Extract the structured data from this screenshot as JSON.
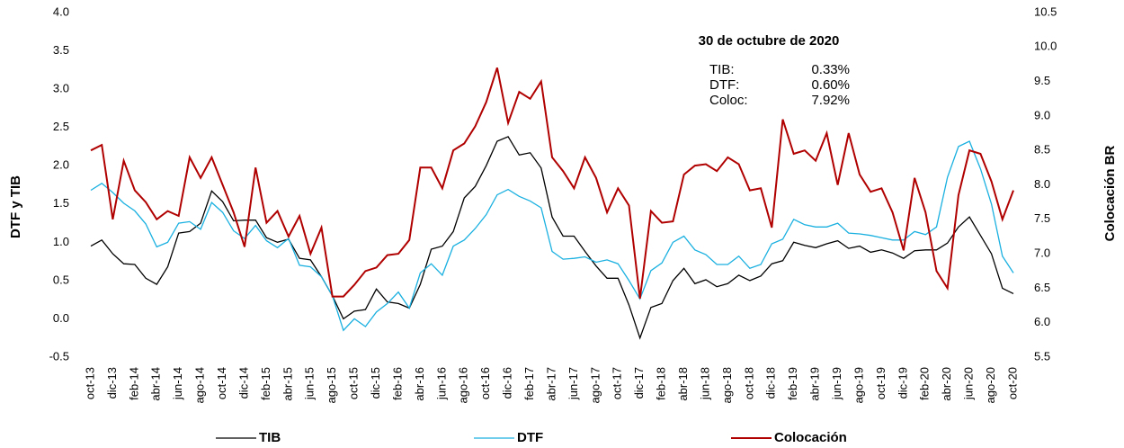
{
  "chart_data": {
    "type": "line",
    "y_label": "DTF y TIB",
    "y2_label": "Colocación BR",
    "annotation": {
      "title": "30 de octubre de 2020",
      "rows": [
        [
          "TIB:",
          "0.33%"
        ],
        [
          "DTF:",
          "0.60%"
        ],
        [
          "Coloc:",
          "7.92%"
        ]
      ]
    },
    "categories": [
      "oct-13",
      null,
      "dic-13",
      null,
      "feb-14",
      null,
      "abr-14",
      null,
      "jun-14",
      null,
      "ago-14",
      null,
      "oct-14",
      null,
      "dic-14",
      null,
      "feb-15",
      null,
      "abr-15",
      null,
      "jun-15",
      null,
      "ago-15",
      null,
      "oct-15",
      null,
      "dic-15",
      null,
      "feb-16",
      null,
      "abr-16",
      null,
      "jun-16",
      null,
      "ago-16",
      null,
      "oct-16",
      null,
      "dic-16",
      null,
      "feb-17",
      null,
      "abr-17",
      null,
      "jun-17",
      null,
      "ago-17",
      null,
      "oct-17",
      null,
      "dic-17",
      null,
      "feb-18",
      null,
      "abr-18",
      null,
      "jun-18",
      null,
      "ago-18",
      null,
      "oct-18",
      null,
      "dic-18",
      null,
      "feb-19",
      null,
      "abr-19",
      null,
      "jun-19",
      null,
      "ago-19",
      null,
      "oct-19",
      null,
      "dic-19",
      null,
      "feb-20",
      null,
      "abr-20",
      null,
      "jun-20",
      null,
      "ago-20",
      null,
      "oct-20"
    ],
    "series": [
      {
        "name": "TIB",
        "color": "#000000",
        "values": [
          0.95,
          1.03,
          0.85,
          0.72,
          0.71,
          0.53,
          0.45,
          0.68,
          1.12,
          1.14,
          1.25,
          1.67,
          1.53,
          1.28,
          1.29,
          1.29,
          1.06,
          1.0,
          1.04,
          0.79,
          0.77,
          0.55,
          0.3,
          0.0,
          0.1,
          0.12,
          0.39,
          0.22,
          0.2,
          0.14,
          0.45,
          0.91,
          0.95,
          1.14,
          1.58,
          1.73,
          2.0,
          2.32,
          2.38,
          2.14,
          2.17,
          1.97,
          1.33,
          1.08,
          1.08,
          0.88,
          0.69,
          0.53,
          0.53,
          0.18,
          -0.25,
          0.15,
          0.2,
          0.5,
          0.66,
          0.46,
          0.51,
          0.42,
          0.46,
          0.57,
          0.5,
          0.56,
          0.72,
          0.76,
          1.0,
          0.96,
          0.93,
          0.98,
          1.02,
          0.92,
          0.95,
          0.87,
          0.9,
          0.86,
          0.79,
          0.89,
          0.9,
          0.9,
          0.99,
          1.2,
          1.33,
          1.09,
          0.85,
          0.4,
          0.33
        ]
      },
      {
        "name": "DTF",
        "color": "#1ab0e0",
        "values": [
          1.68,
          1.77,
          1.65,
          1.51,
          1.41,
          1.24,
          0.94,
          1.0,
          1.25,
          1.27,
          1.17,
          1.52,
          1.39,
          1.15,
          1.05,
          1.22,
          1.02,
          0.93,
          1.05,
          0.7,
          0.68,
          0.55,
          0.3,
          -0.15,
          0.0,
          -0.1,
          0.09,
          0.2,
          0.35,
          0.14,
          0.6,
          0.72,
          0.57,
          0.95,
          1.03,
          1.18,
          1.36,
          1.62,
          1.69,
          1.6,
          1.54,
          1.45,
          0.88,
          0.78,
          0.79,
          0.81,
          0.74,
          0.77,
          0.72,
          0.5,
          0.26,
          0.63,
          0.73,
          1.0,
          1.08,
          0.9,
          0.84,
          0.71,
          0.71,
          0.82,
          0.66,
          0.71,
          0.98,
          1.04,
          1.3,
          1.23,
          1.2,
          1.2,
          1.25,
          1.12,
          1.11,
          1.09,
          1.06,
          1.03,
          1.03,
          1.14,
          1.1,
          1.2,
          1.85,
          2.25,
          2.32,
          1.96,
          1.5,
          0.82,
          0.6
        ]
      },
      {
        "name": "Colocación",
        "color": "#b00000",
        "axis": "y2",
        "values": [
          8.5,
          8.58,
          7.5,
          8.35,
          7.92,
          7.75,
          7.5,
          7.62,
          7.55,
          8.4,
          8.1,
          8.4,
          8.0,
          7.6,
          7.1,
          8.25,
          7.45,
          7.62,
          7.25,
          7.55,
          7.0,
          7.38,
          6.38,
          6.38,
          6.55,
          6.75,
          6.8,
          6.98,
          7.0,
          7.2,
          8.25,
          8.25,
          7.95,
          8.5,
          8.6,
          8.85,
          9.2,
          9.7,
          8.9,
          9.35,
          9.25,
          9.5,
          8.4,
          8.2,
          7.95,
          8.4,
          8.1,
          7.6,
          7.95,
          7.7,
          6.35,
          7.62,
          7.45,
          7.47,
          8.15,
          8.28,
          8.3,
          8.2,
          8.4,
          8.3,
          7.92,
          7.95,
          7.38,
          8.95,
          8.45,
          8.5,
          8.35,
          8.75,
          8.0,
          8.75,
          8.15,
          7.9,
          7.95,
          7.6,
          7.05,
          8.1,
          7.6,
          6.75,
          6.5,
          7.85,
          8.5,
          8.45,
          8.05,
          7.5,
          7.92
        ]
      }
    ],
    "ylim": [
      -0.5,
      4.0
    ],
    "yticks": [
      -0.5,
      {
        "value": 0,
        "label": "0.0"
      },
      0.5,
      {
        "value": 1,
        "label": "1.0"
      },
      1.5,
      {
        "value": 2,
        "label": "2.0"
      },
      2.5,
      {
        "value": 3,
        "label": "3.0"
      },
      3.5,
      {
        "value": 4,
        "label": "4.0"
      }
    ],
    "y2lim": [
      5.5,
      10.5
    ],
    "y2ticks": [
      5.5,
      {
        "value": 6,
        "label": "6.0"
      },
      6.5,
      {
        "value": 7,
        "label": "7.0"
      },
      7.5,
      {
        "value": 8,
        "label": "8.0"
      },
      8.5,
      {
        "value": 9,
        "label": "9.0"
      },
      9.5,
      {
        "value": 10,
        "label": "10.0"
      },
      10.5
    ],
    "grid": false,
    "legend": "bottom"
  }
}
